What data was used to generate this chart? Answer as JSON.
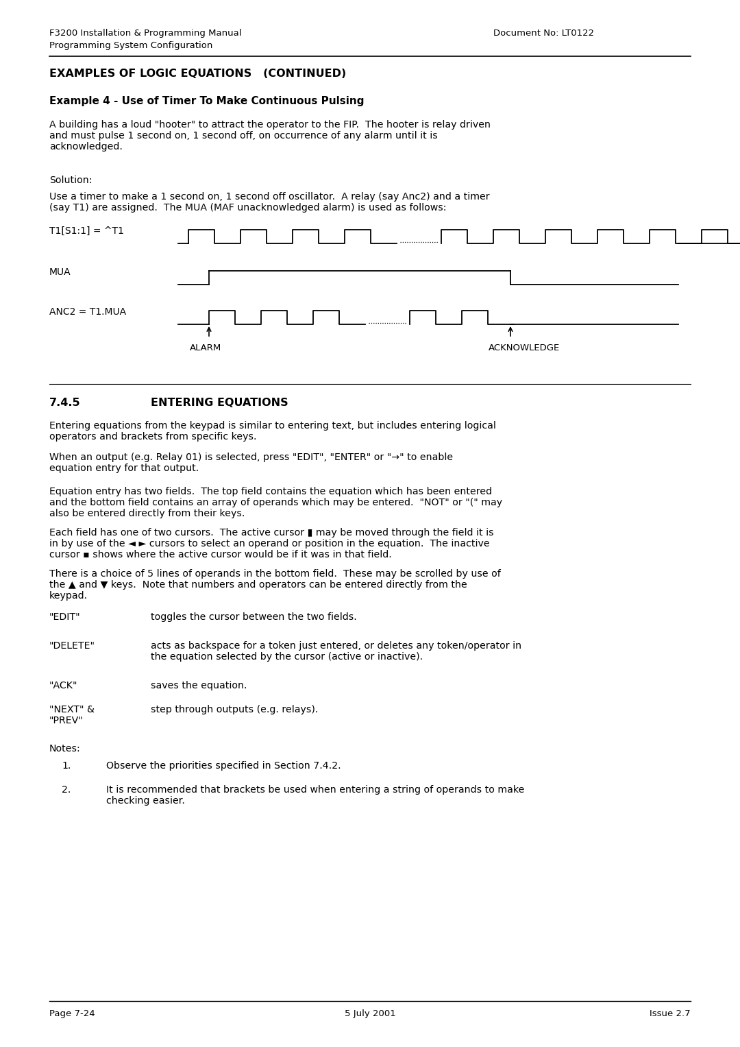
{
  "header_left_line1": "F3200 Installation & Programming Manual",
  "header_left_line2": "Programming System Configuration",
  "header_right": "Document No: LT0122",
  "section_title": "EXAMPLES OF LOGIC EQUATIONS   (CONTINUED)",
  "example_title": "Example 4 - Use of Timer To Make Continuous Pulsing",
  "para1": "A building has a loud \"hooter\" to attract the operator to the FIP.  The hooter is relay driven\nand must pulse 1 second on, 1 second off, on occurrence of any alarm until it is\nacknowledged.",
  "solution_label": "Solution:",
  "para2": "Use a timer to make a 1 second on, 1 second off oscillator.  A relay (say Anc2) and a timer\n(say T1) are assigned.  The MUA (MAF unacknowledged alarm) is used as follows:",
  "section_745": "7.4.5",
  "section_745_title": "ENTERING EQUATIONS",
  "para3": "Entering equations from the keypad is similar to entering text, but includes entering logical\noperators and brackets from specific keys.",
  "para4": "When an output (e.g. Relay 01) is selected, press \"EDIT\", \"ENTER\" or \"→\" to enable\nequation entry for that output.",
  "para5": "Equation entry has two fields.  The top field contains the equation which has been entered\nand the bottom field contains an array of operands which may be entered.  \"NOT\" or \"(\" may\nalso be entered directly from their keys.",
  "para6": "Each field has one of two cursors.  The active cursor ▮ may be moved through the field it is\nin by use of the ◄ ► cursors to select an operand or position in the equation.  The inactive\ncursor ▪ shows where the active cursor would be if it was in that field.",
  "para7": "There is a choice of 5 lines of operands in the bottom field.  These may be scrolled by use of\nthe ▲ and ▼ keys.  Note that numbers and operators can be entered directly from the\nkeypad.",
  "key1_label": "\"EDIT\"",
  "key1_desc": "toggles the cursor between the two fields.",
  "key2_label": "\"DELETE\"",
  "key2_desc": "acts as backspace for a token just entered, or deletes any token/operator in\nthe equation selected by the cursor (active or inactive).",
  "key3_label": "\"ACK\"",
  "key3_desc": "saves the equation.",
  "key4_label": "\"NEXT\" &\n\"PREV\"",
  "key4_desc": "step through outputs (e.g. relays).",
  "notes_label": "Notes:",
  "note1": "Observe the priorities specified in Section 7.4.2.",
  "note2": "It is recommended that brackets be used when entering a string of operands to make\nchecking easier.",
  "footer_left": "Page 7-24",
  "footer_center": "5 July 2001",
  "footer_right": "Issue 2.7",
  "bg_color": "#ffffff",
  "text_color": "#000000"
}
